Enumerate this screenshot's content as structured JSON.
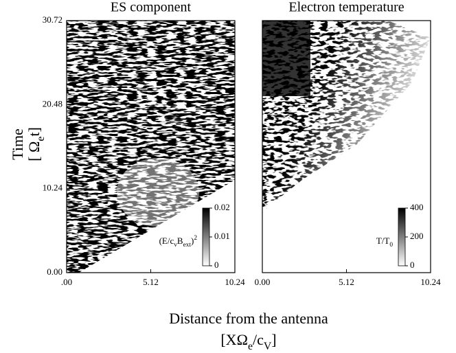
{
  "figure": {
    "xlabel": "Distance from the antenna",
    "xlabel_unit": [
      "[XΩ",
      "e",
      "/c",
      "V",
      "]"
    ],
    "ylabel": "Time",
    "ylabel_unit": [
      "[ Ω",
      "e",
      "t]"
    ]
  },
  "chart_data": [
    {
      "type": "heatmap",
      "title": "ES component",
      "colormap": "gray_r",
      "xlim": [
        0,
        10.24
      ],
      "xticks": [
        {
          "value": 0,
          "label": ".00"
        },
        5.12,
        10.24
      ],
      "ylim": [
        0,
        30.72
      ],
      "yticks": [
        {
          "value": 0,
          "label": "0.00"
        },
        10.24,
        20.48,
        30.72
      ],
      "colorbar": {
        "label": [
          "(E/c",
          "v",
          "B",
          "ext",
          ")",
          "2"
        ],
        "lim": [
          0,
          0.02
        ],
        "ticks": [
          0,
          0.01,
          0.02
        ]
      }
    },
    {
      "type": "heatmap",
      "title": "Electron temperature",
      "colormap": "gray_r",
      "xlim": [
        0,
        10.24
      ],
      "xticks": [
        {
          "value": 0,
          "label": "0.00"
        },
        5.12,
        10.24
      ],
      "ylim": [
        0,
        30.72
      ],
      "colorbar": {
        "label": [
          "T/T",
          "0"
        ],
        "lim": [
          0,
          400
        ],
        "ticks": [
          0,
          200,
          400
        ]
      }
    }
  ]
}
